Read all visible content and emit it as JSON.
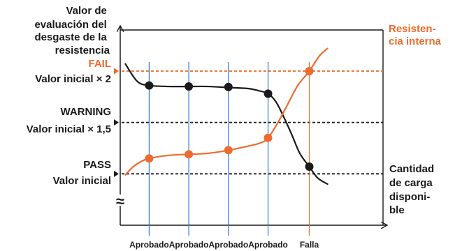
{
  "chart_data": {
    "type": "line",
    "colors": {
      "wear": "#1a1a1a",
      "resistance": "#ee6b2f",
      "inspection": "#2e78c7",
      "axis": "#1a1a1a"
    },
    "ylabel": [
      "Valor de",
      "evaluación del",
      "desgaste de la",
      "resistencia"
    ],
    "levels": [
      {
        "key": "fail",
        "tag": "FAIL",
        "desc": "Valor inicial × 2",
        "y": 2.0,
        "color": "#ee6b2f"
      },
      {
        "key": "warning",
        "tag": "WARNING",
        "desc": "Valor inicial × 1,5",
        "y": 1.5,
        "color": "#1a1a1a"
      },
      {
        "key": "pass",
        "tag": "PASS",
        "desc": "Valor inicial",
        "y": 1.0,
        "color": "#1a1a1a"
      }
    ],
    "resistance_label": [
      "Resisten-",
      "cia interna"
    ],
    "xlabel_right": [
      "Cantidad",
      "de carga",
      "disponi-",
      "ble"
    ],
    "axis_break_symbol": "≈",
    "inspections": [
      {
        "x": 1,
        "label": "Aprobado",
        "color": "#2e78c7"
      },
      {
        "x": 2,
        "label": "Aprobado",
        "color": "#2e78c7"
      },
      {
        "x": 3,
        "label": "Aprobado",
        "color": "#2e78c7"
      },
      {
        "x": 4,
        "label": "Aprobado",
        "color": "#2e78c7"
      },
      {
        "x": 5.04,
        "label": "Falla",
        "color": "#ee6b2f"
      }
    ],
    "xlim": [
      0.27,
      6.9
    ],
    "ylim": [
      0.5,
      2.4
    ],
    "series": [
      {
        "key": "wear",
        "style": "line",
        "points": [
          [
            0.4,
            2.07
          ],
          [
            0.7,
            1.9
          ],
          [
            1,
            1.86
          ],
          [
            1.5,
            1.85
          ],
          [
            2,
            1.85
          ],
          [
            2.5,
            1.85
          ],
          [
            3,
            1.84
          ],
          [
            3.5,
            1.83
          ],
          [
            3.75,
            1.81
          ],
          [
            4,
            1.78
          ],
          [
            4.2,
            1.7
          ],
          [
            4.4,
            1.55
          ],
          [
            4.6,
            1.38
          ],
          [
            4.8,
            1.2
          ],
          [
            5.04,
            1.07
          ],
          [
            5.25,
            0.96
          ],
          [
            5.5,
            0.9
          ]
        ],
        "markers": [
          [
            1,
            1.86
          ],
          [
            2,
            1.85
          ],
          [
            3,
            1.845
          ],
          [
            4,
            1.78
          ],
          [
            5.04,
            1.07
          ]
        ]
      },
      {
        "key": "resistance",
        "style": "line",
        "points": [
          [
            0.4,
            0.99
          ],
          [
            0.6,
            1.07
          ],
          [
            0.8,
            1.12
          ],
          [
            1,
            1.15
          ],
          [
            1.5,
            1.18
          ],
          [
            2,
            1.19
          ],
          [
            2.5,
            1.2
          ],
          [
            3,
            1.23
          ],
          [
            3.5,
            1.27
          ],
          [
            3.8,
            1.3
          ],
          [
            4,
            1.35
          ],
          [
            4.25,
            1.5
          ],
          [
            4.5,
            1.68
          ],
          [
            4.75,
            1.86
          ],
          [
            5.04,
            2.0
          ],
          [
            5.3,
            2.15
          ],
          [
            5.5,
            2.22
          ]
        ],
        "markers": [
          [
            1,
            1.15
          ],
          [
            2,
            1.19
          ],
          [
            3,
            1.23
          ],
          [
            4,
            1.35
          ],
          [
            5.04,
            2.0
          ]
        ]
      }
    ]
  }
}
